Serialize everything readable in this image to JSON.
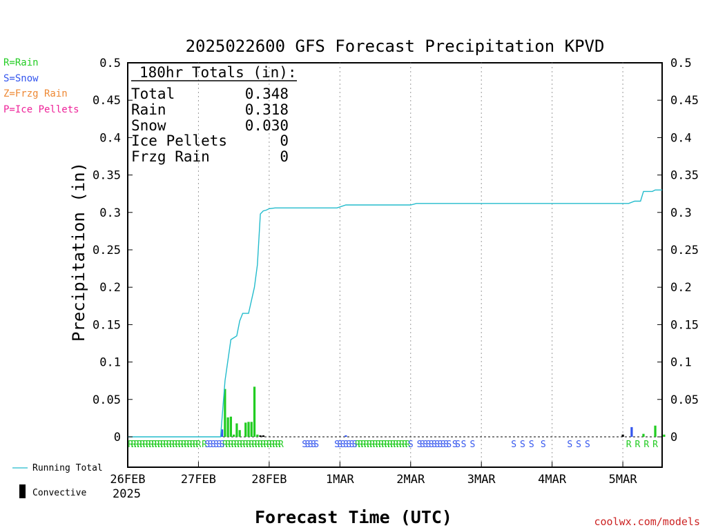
{
  "chart_data": {
    "type": "bar",
    "title": "2025022600 GFS Forecast Precipitation KPVD",
    "xlabel": "Forecast Time (UTC)",
    "ylabel": "Precipitation (in)",
    "ylim": [
      0,
      0.5
    ],
    "xlim_hours": [
      0,
      180
    ],
    "y_ticks": [
      0,
      0.05,
      0.1,
      0.15,
      0.2,
      0.25,
      0.3,
      0.35,
      0.4,
      0.45,
      0.5
    ],
    "y_tick_labels": [
      "0",
      "0.05",
      "0.1",
      "0.15",
      "0.2",
      "0.25",
      "0.3",
      "0.35",
      "0.4",
      "0.45",
      "0.5"
    ],
    "x_ticks": [
      {
        "label": "26FEB",
        "hour": 0
      },
      {
        "label": "27FEB",
        "hour": 24
      },
      {
        "label": "28FEB",
        "hour": 48
      },
      {
        "label": "1MAR",
        "hour": 72
      },
      {
        "label": "2MAR",
        "hour": 96
      },
      {
        "label": "3MAR",
        "hour": 120
      },
      {
        "label": "4MAR",
        "hour": 144
      },
      {
        "label": "5MAR",
        "hour": 168
      }
    ],
    "x_year_label": "2025",
    "grid": "vertical dotted",
    "legend_types": [
      {
        "text": "R=Rain",
        "color": "#22cc22"
      },
      {
        "text": "S=Snow",
        "color": "#3355ee"
      },
      {
        "text": "Z=Frzg Rain",
        "color": "#ee8833"
      },
      {
        "text": "P=Ice Pellets",
        "color": "#ee2299"
      }
    ],
    "legend_lines": [
      {
        "text": "Running Total",
        "color": "#22bbcc"
      },
      {
        "text": "Convective",
        "color": "#000000"
      }
    ],
    "totals_box": {
      "heading": "180hr Totals (in):",
      "rows": [
        {
          "label": "Total",
          "value": "0.348"
        },
        {
          "label": "Rain",
          "value": "0.318"
        },
        {
          "label": "Snow",
          "value": "0.030"
        },
        {
          "label": "Ice Pellets",
          "value": "0"
        },
        {
          "label": "Frzg Rain",
          "value": "0"
        }
      ]
    },
    "series": [
      {
        "name": "Running Total",
        "kind": "line",
        "color": "#22bbcc",
        "points": [
          [
            0,
            0
          ],
          [
            31.5,
            0
          ],
          [
            33,
            0.075
          ],
          [
            35,
            0.13
          ],
          [
            37,
            0.135
          ],
          [
            38,
            0.155
          ],
          [
            39,
            0.165
          ],
          [
            41,
            0.165
          ],
          [
            43,
            0.2
          ],
          [
            44,
            0.23
          ],
          [
            45,
            0.298
          ],
          [
            46,
            0.302
          ],
          [
            47,
            0.303
          ],
          [
            48,
            0.305
          ],
          [
            50,
            0.306
          ],
          [
            60,
            0.306
          ],
          [
            71,
            0.306
          ],
          [
            74,
            0.31
          ],
          [
            96,
            0.31
          ],
          [
            98,
            0.312
          ],
          [
            170,
            0.312
          ],
          [
            172,
            0.315
          ],
          [
            174,
            0.315
          ],
          [
            175,
            0.328
          ],
          [
            178,
            0.328
          ],
          [
            179,
            0.33
          ],
          [
            182,
            0.33
          ],
          [
            183,
            0.345
          ],
          [
            185,
            0.345
          ],
          [
            186,
            0.349
          ],
          [
            190,
            0.349
          ]
        ]
      },
      {
        "name": "Rain",
        "kind": "bars",
        "color": "#22cc22",
        "points": [
          [
            33,
            0.064
          ],
          [
            34,
            0.026
          ],
          [
            35,
            0.027
          ],
          [
            36,
            0.003
          ],
          [
            37,
            0.018
          ],
          [
            38,
            0.009
          ],
          [
            40,
            0.019
          ],
          [
            41,
            0.02
          ],
          [
            42,
            0.02
          ],
          [
            43,
            0.067
          ],
          [
            44,
            0.003
          ],
          [
            175,
            0.004
          ],
          [
            179,
            0.015
          ],
          [
            182,
            0.003
          ]
        ]
      },
      {
        "name": "Snow",
        "kind": "bars",
        "color": "#3355ee",
        "points": [
          [
            32,
            0.01
          ],
          [
            74,
            0.002
          ],
          [
            171,
            0.013
          ]
        ]
      },
      {
        "name": "Convective",
        "kind": "bars",
        "color": "#000000",
        "points": [
          [
            45,
            0.002
          ],
          [
            46,
            0.002
          ],
          [
            168,
            0.003
          ]
        ]
      }
    ],
    "type_markers": [
      {
        "letter": "R",
        "color": "#22cc22",
        "hours": [
          1,
          2,
          3,
          4,
          5,
          6,
          7,
          8,
          9,
          10,
          11,
          12,
          13,
          14,
          15,
          16,
          17,
          18,
          19,
          20,
          21,
          22,
          23,
          24,
          26,
          33,
          34,
          35,
          36,
          37,
          38,
          39,
          40,
          41,
          42,
          43,
          44,
          45,
          46,
          47,
          48,
          49,
          50,
          51,
          52,
          78,
          79,
          80,
          81,
          82,
          83,
          84,
          85,
          86,
          87,
          88,
          89,
          90,
          91,
          92,
          93,
          94,
          95,
          170,
          173,
          176,
          179
        ]
      },
      {
        "letter": "S",
        "color": "#3355ee",
        "hours": [
          27,
          28,
          29,
          30,
          31,
          32,
          60,
          61,
          62,
          63,
          64,
          71,
          72,
          73,
          74,
          75,
          76,
          77,
          96,
          99,
          100,
          101,
          102,
          103,
          104,
          105,
          106,
          107,
          108,
          109,
          111,
          112,
          114,
          117,
          131,
          134,
          137,
          141,
          150,
          153,
          156
        ]
      }
    ],
    "credit": "coolwx.com/models"
  }
}
